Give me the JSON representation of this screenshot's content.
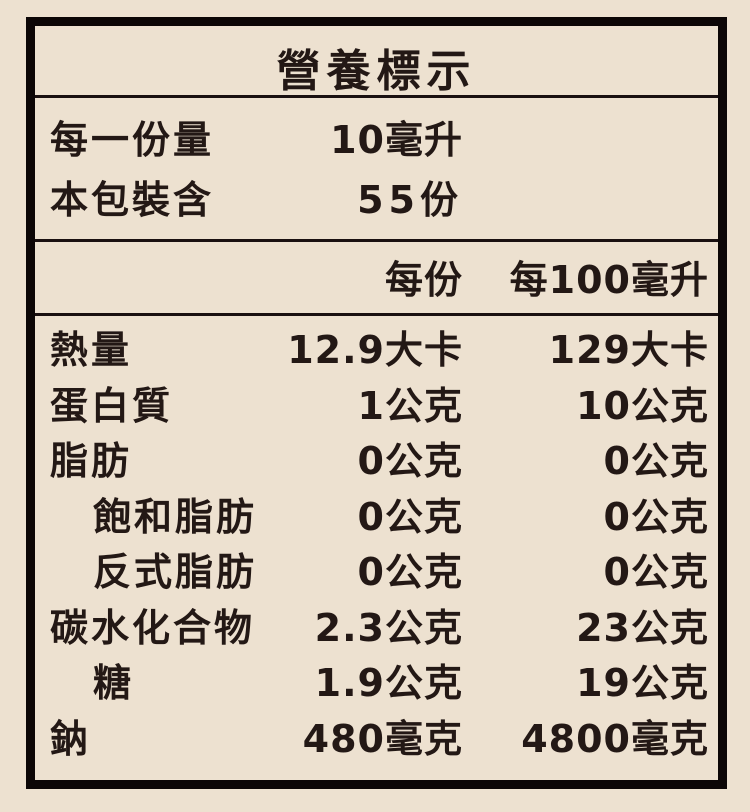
{
  "title": "營養標示",
  "serving": {
    "per_serving_label": "每一份量",
    "per_serving_value": "10毫升",
    "servings_label": "本包裝含",
    "servings_value": "55份"
  },
  "columns": {
    "per_serving": "每份",
    "per_100": "每100毫升"
  },
  "rows": [
    {
      "name": "熱量",
      "per_serving": "12.9大卡",
      "per_100": "129大卡"
    },
    {
      "name": "蛋白質",
      "per_serving": "1公克",
      "per_100": "10公克"
    },
    {
      "name": "脂肪",
      "per_serving": "0公克",
      "per_100": "0公克"
    },
    {
      "name": "飽和脂肪",
      "per_serving": "0公克",
      "per_100": "0公克"
    },
    {
      "name": "反式脂肪",
      "per_serving": "0公克",
      "per_100": "0公克"
    },
    {
      "name": "碳水化合物",
      "per_serving": "2.3公克",
      "per_100": "23公克"
    },
    {
      "name": "糖",
      "per_serving": "1.9公克",
      "per_100": "19公克"
    },
    {
      "name": "鈉",
      "per_serving": "480毫克",
      "per_100": "4800毫克"
    }
  ]
}
